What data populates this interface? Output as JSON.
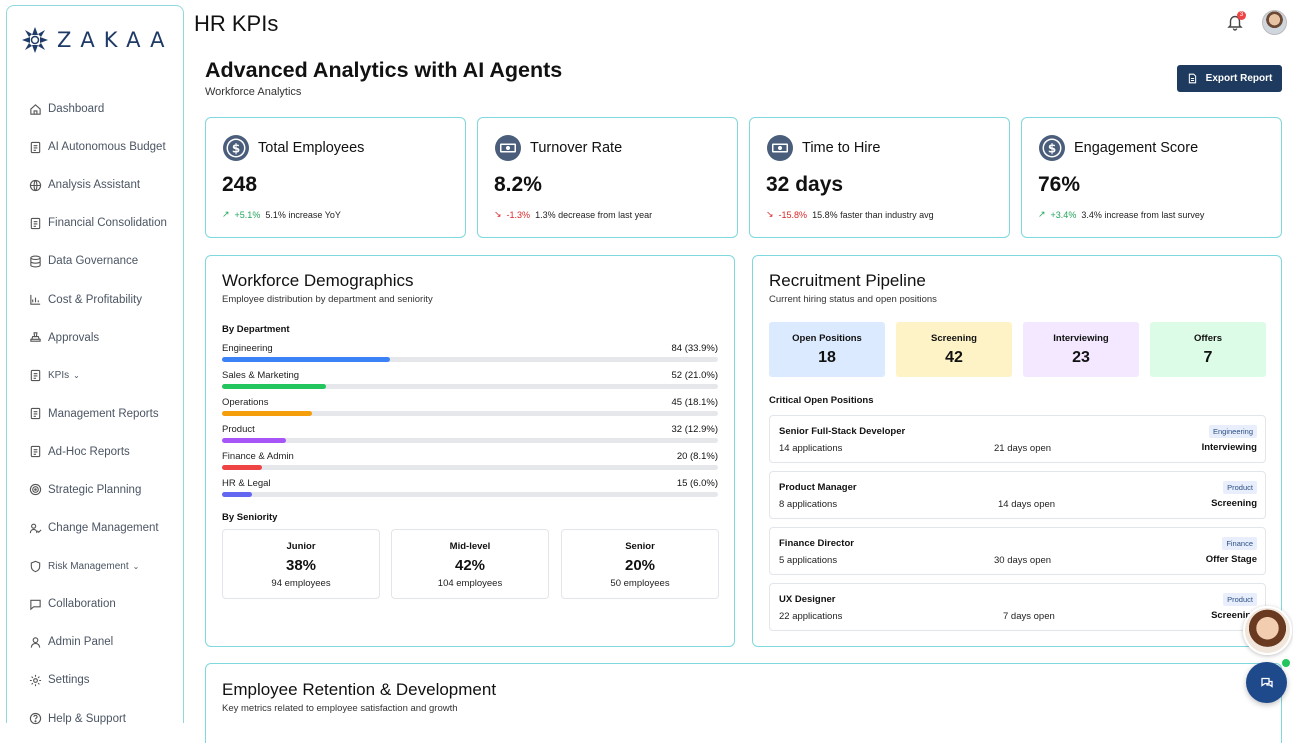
{
  "brand": {
    "name": "ZAKAA"
  },
  "sidebar": {
    "items": [
      {
        "label": "Dashboard",
        "icon": "home-icon"
      },
      {
        "label": "AI Autonomous Budget",
        "icon": "document-icon"
      },
      {
        "label": "Analysis Assistant",
        "icon": "globe-icon"
      },
      {
        "label": "Financial Consolidation",
        "icon": "document-icon"
      },
      {
        "label": "Data Governance",
        "icon": "database-icon"
      },
      {
        "label": "Cost & Profitability",
        "icon": "chart-icon"
      },
      {
        "label": "Approvals",
        "icon": "stamp-icon"
      },
      {
        "label": "KPIs",
        "icon": "document-icon",
        "chevron": "⌄"
      },
      {
        "label": "Management Reports",
        "icon": "document-icon"
      },
      {
        "label": "Ad-Hoc Reports",
        "icon": "document-icon"
      },
      {
        "label": "Strategic Planning",
        "icon": "target-icon"
      },
      {
        "label": "Change Management",
        "icon": "users-icon"
      },
      {
        "label": "Risk Management",
        "icon": "shield-icon",
        "chevron": "⌄"
      },
      {
        "label": "Collaboration",
        "icon": "chat-icon"
      },
      {
        "label": "Admin Panel",
        "icon": "user-icon"
      },
      {
        "label": "Settings",
        "icon": "gear-icon"
      },
      {
        "label": "Help & Support",
        "icon": "help-icon"
      }
    ]
  },
  "header": {
    "title": "HR KPIs",
    "notification_count": "3"
  },
  "page": {
    "title": "Advanced Analytics with AI Agents",
    "subtitle": "Workforce Analytics",
    "export_label": "Export Report"
  },
  "kpis": [
    {
      "title": "Total Employees",
      "value": "248",
      "trend_dir": "up",
      "arrow": "↗",
      "change": "+5.1%",
      "note": "5.1% increase YoY"
    },
    {
      "title": "Turnover Rate",
      "value": "8.2%",
      "trend_dir": "down",
      "arrow": "↘",
      "change": "-1.3%",
      "note": "1.3% decrease from last year"
    },
    {
      "title": "Time to Hire",
      "value": "32 days",
      "trend_dir": "down",
      "arrow": "↘",
      "change": "-15.8%",
      "note": "15.8% faster than industry avg"
    },
    {
      "title": "Engagement Score",
      "value": "76%",
      "trend_dir": "up",
      "arrow": "↗",
      "change": "+3.4%",
      "note": "3.4% increase from last survey"
    }
  ],
  "demographics": {
    "title": "Workforce Demographics",
    "subtitle": "Employee distribution by department and seniority",
    "by_department_label": "By Department",
    "departments": [
      {
        "name": "Engineering",
        "display": "84 (33.9%)",
        "percent": 33.9,
        "color": "#3b82f6"
      },
      {
        "name": "Sales & Marketing",
        "display": "52 (21.0%)",
        "percent": 21.0,
        "color": "#22c55e"
      },
      {
        "name": "Operations",
        "display": "45 (18.1%)",
        "percent": 18.1,
        "color": "#f59e0b"
      },
      {
        "name": "Product",
        "display": "32 (12.9%)",
        "percent": 12.9,
        "color": "#a855f7"
      },
      {
        "name": "Finance & Admin",
        "display": "20 (8.1%)",
        "percent": 8.1,
        "color": "#ef4444"
      },
      {
        "name": "HR & Legal",
        "display": "15 (6.0%)",
        "percent": 6.0,
        "color": "#6366f1"
      }
    ],
    "by_seniority_label": "By Seniority",
    "seniority": [
      {
        "level": "Junior",
        "percent": "38%",
        "count": "94 employees"
      },
      {
        "level": "Mid-level",
        "percent": "42%",
        "count": "104 employees"
      },
      {
        "level": "Senior",
        "percent": "20%",
        "count": "50 employees"
      }
    ]
  },
  "recruitment": {
    "title": "Recruitment Pipeline",
    "subtitle": "Current hiring status and open positions",
    "stages": [
      {
        "label": "Open Positions",
        "count": "18",
        "color": "#dbeafe"
      },
      {
        "label": "Screening",
        "count": "42",
        "color": "#fef3c7"
      },
      {
        "label": "Interviewing",
        "count": "23",
        "color": "#f3e8ff"
      },
      {
        "label": "Offers",
        "count": "7",
        "color": "#dcfce7"
      }
    ],
    "critical_label": "Critical Open Positions",
    "positions": [
      {
        "title": "Senior Full-Stack Developer",
        "applications": "14 applications",
        "days": "21 days open",
        "dept": "Engineering",
        "status": "Interviewing"
      },
      {
        "title": "Product Manager",
        "applications": "8 applications",
        "days": "14 days open",
        "dept": "Product",
        "status": "Screening"
      },
      {
        "title": "Finance Director",
        "applications": "5 applications",
        "days": "30 days open",
        "dept": "Finance",
        "status": "Offer Stage"
      },
      {
        "title": "UX Designer",
        "applications": "22 applications",
        "days": "7 days open",
        "dept": "Product",
        "status": "Screening"
      }
    ]
  },
  "retention": {
    "title": "Employee Retention & Development",
    "subtitle": "Key metrics related to employee satisfaction and growth"
  }
}
